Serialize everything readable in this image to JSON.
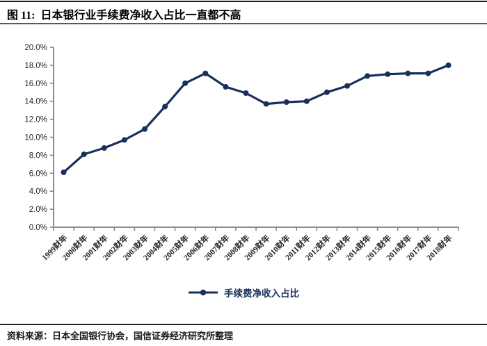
{
  "header": {
    "figure_label": "图 11:",
    "title": "日本银行业手续费净收入占比一直都不高"
  },
  "footer": {
    "source": "资料来源：日本全国银行协会，国信证券经济研究所整理"
  },
  "colors": {
    "series": "#17305c",
    "axis": "#7f7f7f",
    "tick_label": "#262626"
  },
  "chart_data": {
    "type": "line",
    "title": "日本银行业手续费净收入占比一直都不高",
    "categories": [
      "1999财年",
      "2000财年",
      "2001财年",
      "2002财年",
      "2003财年",
      "2004财年",
      "2005财年",
      "2006财年",
      "2007财年",
      "2008财年",
      "2009财年",
      "2010财年",
      "2011财年",
      "2012财年",
      "2013财年",
      "2014财年",
      "2015财年",
      "2016财年",
      "2017财年",
      "2018财年"
    ],
    "series": [
      {
        "name": "手续费净收入占比",
        "values": [
          6.1,
          8.1,
          8.8,
          9.7,
          10.9,
          13.4,
          16.0,
          17.1,
          15.6,
          14.9,
          13.7,
          13.9,
          14.0,
          15.0,
          15.7,
          16.8,
          17.0,
          17.1,
          17.1,
          18.0
        ]
      }
    ],
    "xlabel": "",
    "ylabel": "",
    "ylim": [
      0,
      20
    ],
    "yticks": [
      0,
      2,
      4,
      6,
      8,
      10,
      12,
      14,
      16,
      18,
      20
    ],
    "ytick_labels": [
      "0.0%",
      "2.0%",
      "4.0%",
      "6.0%",
      "8.0%",
      "10.0%",
      "12.0%",
      "14.0%",
      "16.0%",
      "18.0%",
      "20.0%"
    ],
    "grid": false,
    "legend_position": "bottom",
    "marker": "circle"
  }
}
